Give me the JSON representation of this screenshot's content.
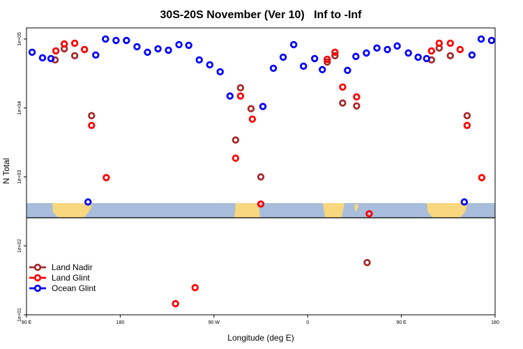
{
  "chart_data": {
    "type": "scatter",
    "title": "30S-20S November (Ver 10)   Inf to -Inf",
    "xlabel": "Longitude (deg E)",
    "ylabel": "N Total",
    "log_y": true,
    "grid": false,
    "legend": "bottom-left",
    "xlim": [
      -270,
      180
    ],
    "xticks": [
      {
        "value": -270,
        "label": "90 E"
      },
      {
        "value": -180,
        "label": "180"
      },
      {
        "value": -90,
        "label": "90 W"
      },
      0,
      {
        "value": 90,
        "label": "90 E"
      },
      180
    ],
    "ylim": [
      10,
      145000
    ],
    "yticks": [
      {
        "value": 10,
        "label": "1e+01"
      },
      {
        "value": 100,
        "label": "1e+02"
      },
      {
        "value": 1000,
        "label": "1e+03"
      },
      {
        "value": 10000,
        "label": "1e+04"
      },
      {
        "value": 100000,
        "label": "1e+05"
      }
    ],
    "series": [
      {
        "name": "Land Nadir",
        "color": "#a52a2a",
        "x": [
          -242.5,
          -233.7,
          -223.7,
          -207.5,
          -69.2,
          -64.5,
          -54.4,
          -45,
          18.8,
          26.2,
          33.6,
          47,
          57.1,
          118.9,
          126.3,
          137,
          153.1
        ],
        "values": [
          49800,
          72200,
          57300,
          7740,
          3430,
          19600,
          9770,
          1000,
          46400,
          57300,
          11800,
          10700,
          57.2,
          49800,
          74000,
          57300,
          7740
        ]
      },
      {
        "name": "Land Glint",
        "color": "#ff0000",
        "x": [
          -241.8,
          -233.7,
          -223.7,
          -214.3,
          -207.5,
          -193.4,
          -126.9,
          -108.1,
          -69.2,
          -64.5,
          -53.1,
          -45,
          18.8,
          26.2,
          33.6,
          47,
          59.1,
          118.9,
          126.3,
          137,
          146.4,
          153.1,
          167.2
        ],
        "values": [
          67300,
          84900,
          86900,
          70500,
          5590,
          977,
          14.5,
          24.8,
          1870,
          14900,
          6890,
          404,
          50900,
          64300,
          20100,
          14500,
          292,
          67300,
          86900,
          86900,
          70500,
          5590,
          977
        ]
      },
      {
        "name": "Ocean Glint",
        "color": "#0000ff",
        "x": [
          -264.6,
          -254.6,
          -246.5,
          -210.9,
          -203.5,
          -194.1,
          -184,
          -174,
          -163.9,
          -153.8,
          -143.7,
          -133.7,
          -123.6,
          -114.2,
          -104.1,
          -94,
          -84,
          -74.6,
          -43,
          -32.9,
          -23.5,
          -13.4,
          -4,
          6.7,
          14.1,
          38.3,
          46.3,
          56.4,
          66.5,
          76.6,
          86,
          96.7,
          106.1,
          114.2,
          150.4,
          157.8,
          166.6,
          176.6
        ],
        "values": [
          64300,
          53400,
          52100,
          433,
          58600,
          100000,
          95500,
          95500,
          77400,
          64300,
          72200,
          68900,
          83000,
          81100,
          49800,
          42300,
          33500,
          14900,
          10500,
          37700,
          54600,
          83000,
          40400,
          52100,
          36000,
          35100,
          55900,
          62800,
          74000,
          70500,
          79300,
          62800,
          54600,
          52100,
          433,
          58600,
          100000,
          95500
        ]
      }
    ]
  }
}
